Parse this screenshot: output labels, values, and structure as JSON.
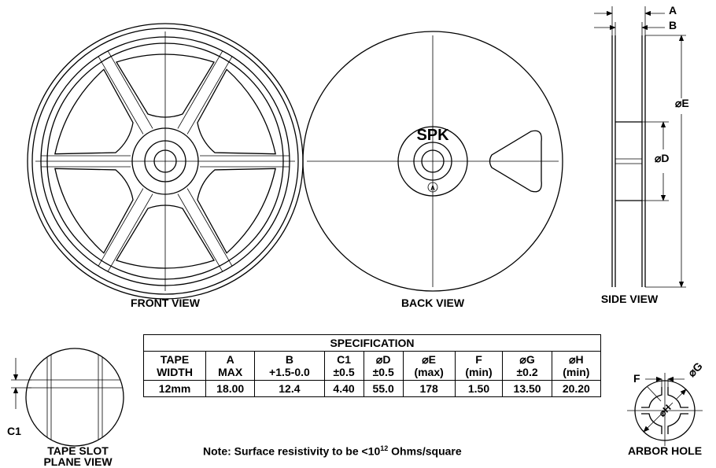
{
  "views": {
    "front": "FRONT VIEW",
    "back": "BACK VIEW",
    "side": "SIDE VIEW",
    "tape_slot": [
      "TAPE SLOT",
      "PLANE VIEW"
    ],
    "arbor": "ARBOR HOLE"
  },
  "reel_label": "SPK",
  "reel_mark": "A",
  "dimensions": {
    "a": "A",
    "b": "B",
    "e": "⌀E",
    "d": "⌀D",
    "c1": "C1",
    "f": "F",
    "g": "⌀G",
    "h": "⌀H"
  },
  "table": {
    "title": "SPECIFICATION",
    "header": [
      [
        "TAPE",
        "WIDTH"
      ],
      [
        "A",
        "MAX"
      ],
      [
        "B",
        "+1.5-0.0"
      ],
      [
        "C1",
        "±0.5"
      ],
      [
        "⌀D",
        "±0.5"
      ],
      [
        "⌀E",
        "(max)"
      ],
      [
        "F",
        "(min)"
      ],
      [
        "⌀G",
        "±0.2"
      ],
      [
        "⌀H",
        "(min)"
      ]
    ],
    "rows": [
      [
        "12mm",
        "18.00",
        "12.4",
        "4.40",
        "55.0",
        "178",
        "1.50",
        "13.50",
        "20.20"
      ]
    ]
  },
  "note": {
    "prefix": "Note: Surface resistivity to be <10",
    "exponent": "12",
    "suffix": " Ohms/square"
  }
}
